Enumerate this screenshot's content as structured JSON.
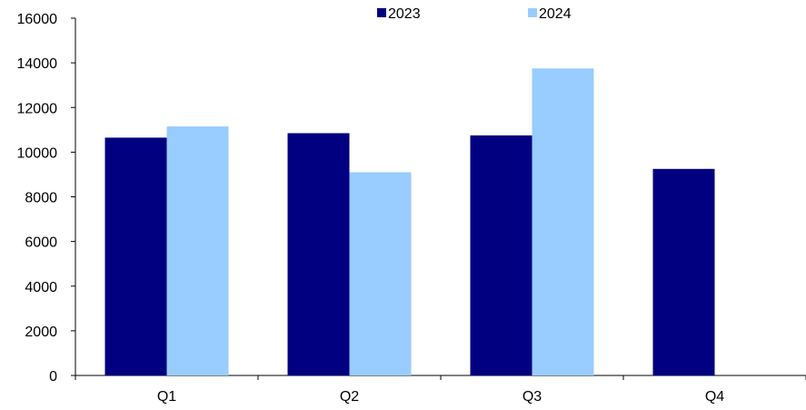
{
  "chart_data": {
    "type": "bar",
    "categories": [
      "Q1",
      "Q2",
      "Q3",
      "Q4"
    ],
    "series": [
      {
        "name": "2023",
        "values": [
          10650,
          10850,
          10750,
          9250
        ],
        "color": "#000080"
      },
      {
        "name": "2024",
        "values": [
          11150,
          9100,
          13750,
          null
        ],
        "color": "#99CCFF"
      }
    ],
    "ylim": [
      0,
      16000
    ],
    "yticks": [
      0,
      2000,
      4000,
      6000,
      8000,
      10000,
      12000,
      14000,
      16000
    ],
    "grid": false,
    "legend_position": "top-center",
    "title": "",
    "xlabel": "",
    "ylabel": ""
  }
}
